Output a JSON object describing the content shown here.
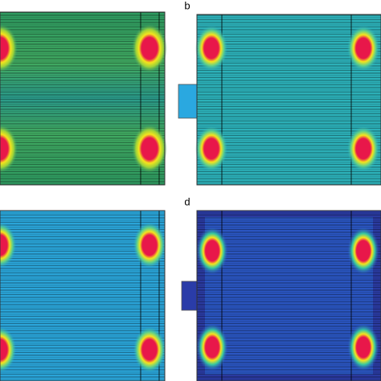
{
  "panels": [
    {
      "label": "b"
    },
    {
      "label": "d"
    }
  ]
}
